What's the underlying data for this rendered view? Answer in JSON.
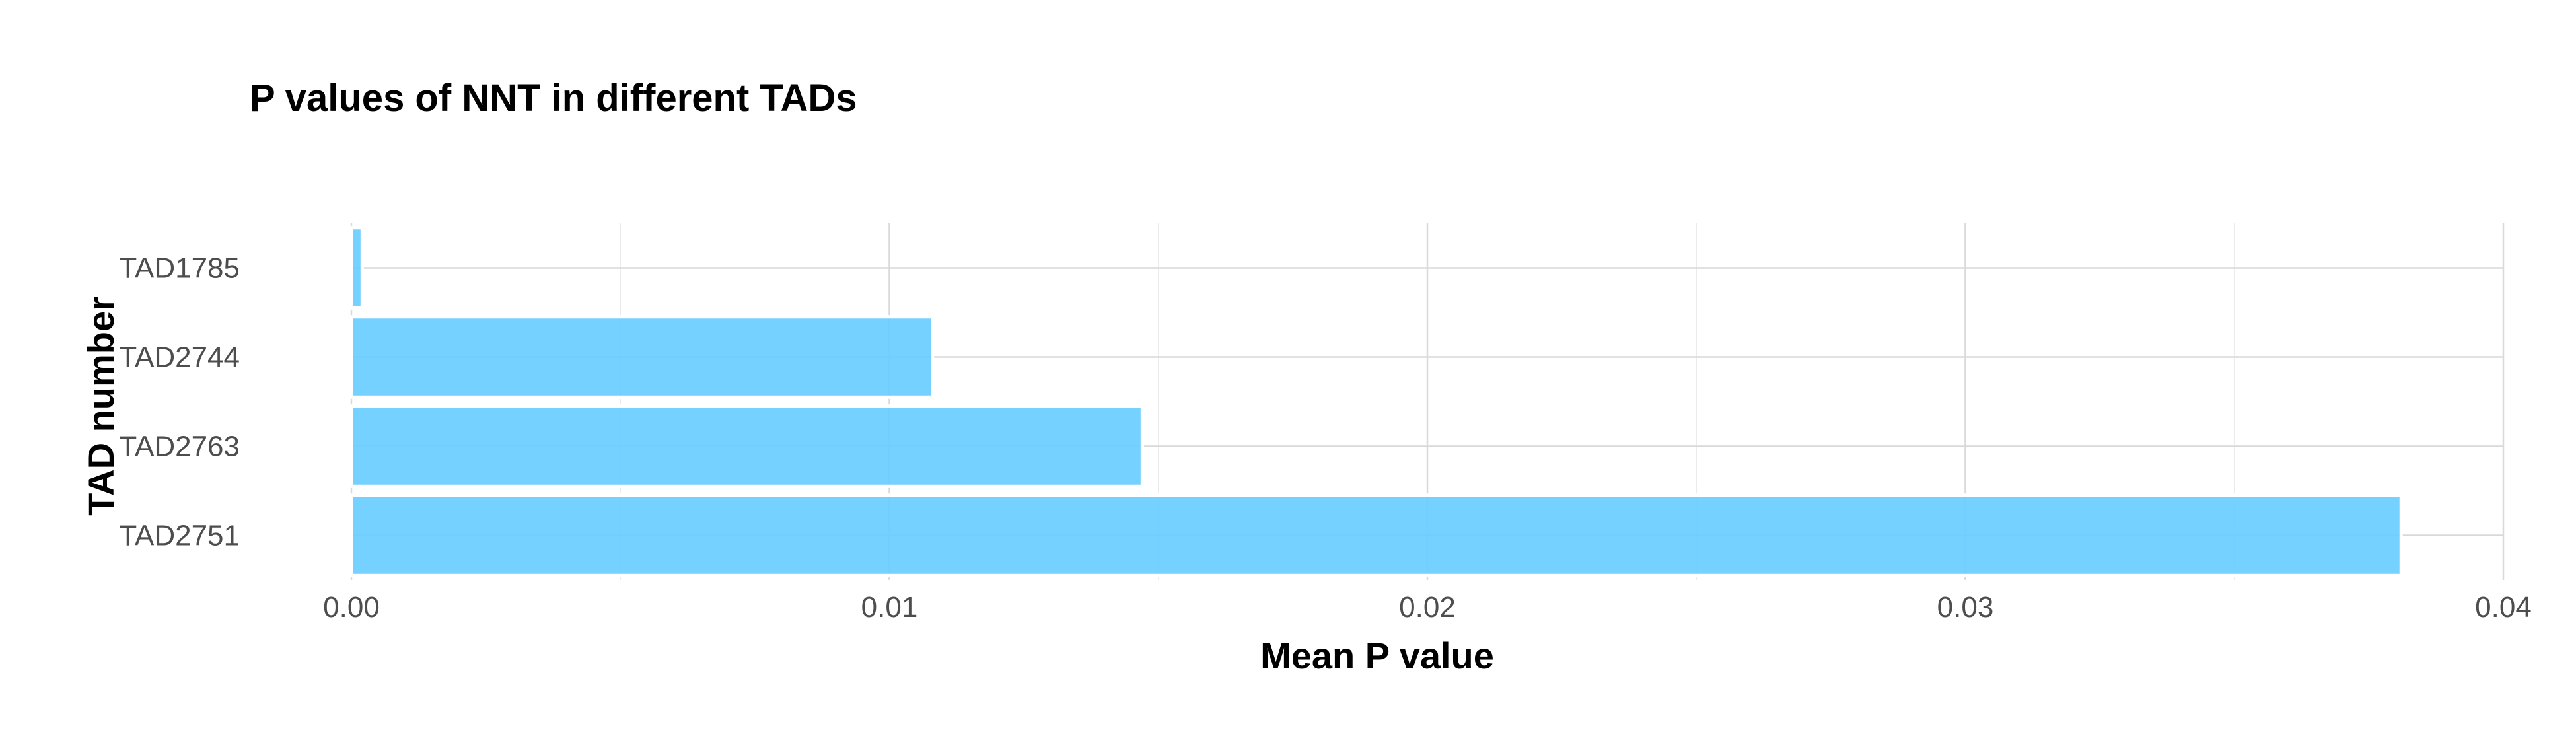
{
  "chart_data": {
    "type": "bar",
    "orientation": "horizontal",
    "title": "P values of NNT in different TADs",
    "xlabel": "Mean P value",
    "ylabel": "TAD number",
    "categories": [
      "TAD1785",
      "TAD2744",
      "TAD2763",
      "TAD2751"
    ],
    "values": [
      0.0002,
      0.0108,
      0.0147,
      0.0381
    ],
    "xlim": [
      0,
      0.04
    ],
    "xticks": [
      0,
      0.01,
      0.02,
      0.03,
      0.04
    ],
    "xtick_labels": [
      "0.00",
      "0.01",
      "0.02",
      "0.03",
      "0.04"
    ],
    "grid": true,
    "legend": "none",
    "bar_color": "#66CCFF"
  }
}
